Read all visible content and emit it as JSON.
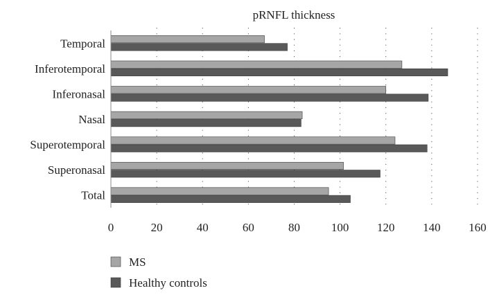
{
  "chart_data": {
    "type": "bar",
    "orientation": "horizontal",
    "title": "pRNFL thickness",
    "categories": [
      "Temporal",
      "Inferotemporal",
      "Inferonasal",
      "Nasal",
      "Superotemporal",
      "Superonasal",
      "Total"
    ],
    "series": [
      {
        "name": "MS",
        "color": "#a6a6a6",
        "values": [
          67,
          127,
          120,
          83.5,
          124,
          101.5,
          95
        ]
      },
      {
        "name": "Healthy controls",
        "color": "#595959",
        "values": [
          77,
          147,
          138.5,
          83,
          138,
          117.5,
          104.5
        ]
      }
    ],
    "xlim": [
      0,
      160
    ],
    "xticks": [
      "0",
      "20",
      "40",
      "60",
      "80",
      "100",
      "120",
      "140",
      "160"
    ],
    "grid": "vertical dotted",
    "legend_position": "bottom-left"
  }
}
